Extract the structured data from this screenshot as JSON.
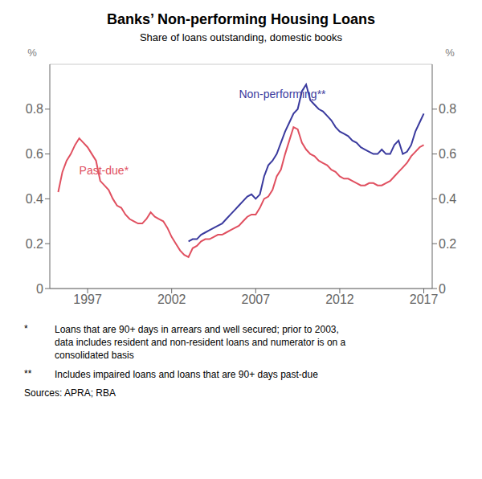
{
  "chart_data": {
    "type": "line",
    "title": "Banks’ Non-performing Housing Loans",
    "subtitle": "Share of loans outstanding, domestic books",
    "ylabel": "%",
    "y2label": "%",
    "xlim": [
      1994.75,
      2017.5
    ],
    "xticks": [
      1997,
      2002,
      2007,
      2012,
      2017
    ],
    "ylim": [
      0,
      1.0
    ],
    "yticks": [
      0,
      0.2,
      0.4,
      0.6,
      0.8
    ],
    "y2lim": [
      0,
      1.0
    ],
    "y2ticks": [
      0,
      0.2,
      0.4,
      0.6,
      0.8
    ],
    "grid": true,
    "series": [
      {
        "color": "#e05060",
        "x": [
          1995.25,
          1995.5,
          1995.75,
          1996.0,
          1996.25,
          1996.5,
          1996.75,
          1997.0,
          1997.25,
          1997.5,
          1997.75,
          1998.0,
          1998.25,
          1998.5,
          1998.75,
          1999.0,
          1999.25,
          1999.5,
          1999.75,
          2000.0,
          2000.25,
          2000.5,
          2000.75,
          2001.0,
          2001.25,
          2001.5,
          2001.75,
          2002.0,
          2002.25,
          2002.5,
          2002.75,
          2003.0,
          2003.25,
          2003.5,
          2003.75,
          2004.0,
          2004.25,
          2004.5,
          2004.75,
          2005.0,
          2005.25,
          2005.5,
          2005.75,
          2006.0,
          2006.25,
          2006.5,
          2006.75,
          2007.0,
          2007.25,
          2007.5,
          2007.75,
          2008.0,
          2008.25,
          2008.5,
          2008.75,
          2009.0,
          2009.25,
          2009.5,
          2009.75,
          2010.0,
          2010.25,
          2010.5,
          2010.75,
          2011.0,
          2011.25,
          2011.5,
          2011.75,
          2012.0,
          2012.25,
          2012.5,
          2012.75,
          2013.0,
          2013.25,
          2013.5,
          2013.75,
          2014.0,
          2014.25,
          2014.5,
          2014.75,
          2015.0,
          2015.25,
          2015.5,
          2015.75,
          2016.0,
          2016.25,
          2016.5,
          2016.75,
          2017.0
        ],
        "values": [
          0.43,
          0.52,
          0.57,
          0.6,
          0.64,
          0.67,
          0.65,
          0.63,
          0.6,
          0.57,
          0.48,
          0.46,
          0.44,
          0.4,
          0.37,
          0.36,
          0.33,
          0.31,
          0.3,
          0.29,
          0.29,
          0.31,
          0.34,
          0.32,
          0.31,
          0.3,
          0.27,
          0.23,
          0.2,
          0.17,
          0.15,
          0.14,
          0.18,
          0.19,
          0.21,
          0.22,
          0.22,
          0.23,
          0.24,
          0.24,
          0.25,
          0.26,
          0.27,
          0.28,
          0.3,
          0.32,
          0.33,
          0.33,
          0.36,
          0.4,
          0.41,
          0.44,
          0.5,
          0.53,
          0.6,
          0.66,
          0.72,
          0.71,
          0.65,
          0.62,
          0.6,
          0.59,
          0.57,
          0.56,
          0.55,
          0.53,
          0.52,
          0.5,
          0.49,
          0.49,
          0.48,
          0.47,
          0.46,
          0.46,
          0.47,
          0.47,
          0.46,
          0.46,
          0.47,
          0.48,
          0.5,
          0.52,
          0.54,
          0.56,
          0.59,
          0.61,
          0.63,
          0.64
        ]
      },
      {
        "color": "#3a3a9e",
        "x": [
          2003.0,
          2003.25,
          2003.5,
          2003.75,
          2004.0,
          2004.25,
          2004.5,
          2004.75,
          2005.0,
          2005.25,
          2005.5,
          2005.75,
          2006.0,
          2006.25,
          2006.5,
          2006.75,
          2007.0,
          2007.25,
          2007.5,
          2007.75,
          2008.0,
          2008.25,
          2008.5,
          2008.75,
          2009.0,
          2009.25,
          2009.5,
          2009.75,
          2010.0,
          2010.25,
          2010.5,
          2010.75,
          2011.0,
          2011.25,
          2011.5,
          2011.75,
          2012.0,
          2012.25,
          2012.5,
          2012.75,
          2013.0,
          2013.25,
          2013.5,
          2013.75,
          2014.0,
          2014.25,
          2014.5,
          2014.75,
          2015.0,
          2015.25,
          2015.5,
          2015.75,
          2016.0,
          2016.25,
          2016.5,
          2016.75,
          2017.0
        ],
        "values": [
          0.21,
          0.22,
          0.22,
          0.24,
          0.25,
          0.26,
          0.27,
          0.28,
          0.29,
          0.31,
          0.33,
          0.35,
          0.37,
          0.39,
          0.41,
          0.42,
          0.4,
          0.42,
          0.5,
          0.55,
          0.57,
          0.6,
          0.65,
          0.7,
          0.74,
          0.78,
          0.8,
          0.88,
          0.91,
          0.84,
          0.82,
          0.8,
          0.79,
          0.77,
          0.75,
          0.72,
          0.7,
          0.69,
          0.68,
          0.66,
          0.65,
          0.63,
          0.62,
          0.61,
          0.6,
          0.6,
          0.62,
          0.6,
          0.6,
          0.64,
          0.66,
          0.6,
          0.61,
          0.64,
          0.7,
          0.74,
          0.78
        ]
      }
    ],
    "annotations": [
      {
        "text": "Past-due*",
        "x": 1996.5,
        "y": 0.5,
        "color": "#e05060"
      },
      {
        "text": "Non-performing**",
        "x": 2006.0,
        "y": 0.84,
        "color": "#3a3a9e"
      }
    ],
    "footnotes": [
      {
        "symbol": "*",
        "text": "Loans that are 90+ days in arrears and well secured; prior to 2003,\ndata includes resident and non-resident loans and numerator is on a\nconsolidated basis"
      },
      {
        "symbol": "**",
        "text": "Includes impaired loans and loans that are 90+ days past-due"
      }
    ],
    "source": "Sources: APRA; RBA"
  }
}
